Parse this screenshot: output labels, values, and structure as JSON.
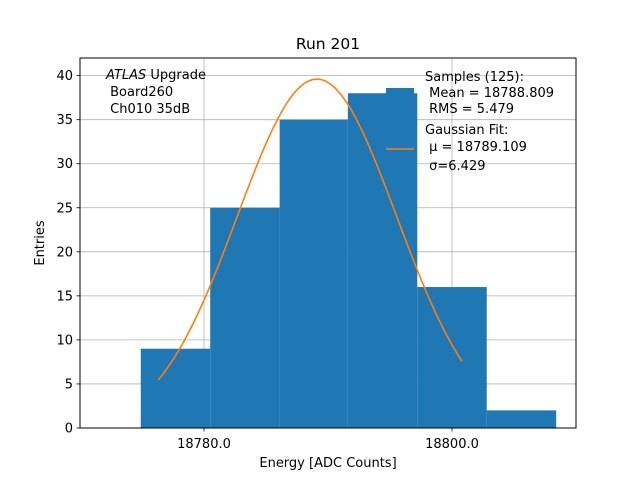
{
  "chart_data": {
    "type": "bar",
    "title": "Run 201",
    "xlabel": "Energy [ADC Counts]",
    "ylabel": "Entries",
    "xlim": [
      18770,
      18810
    ],
    "ylim": [
      0,
      42
    ],
    "grid": true,
    "x_ticks": [
      18780,
      18800
    ],
    "x_tick_labels": [
      "18780.0",
      "18800.0"
    ],
    "y_ticks": [
      0,
      5,
      10,
      15,
      20,
      25,
      30,
      35,
      40
    ],
    "y_tick_labels": [
      "0",
      "5",
      "10",
      "15",
      "20",
      "25",
      "30",
      "35",
      "40"
    ],
    "bins": [
      {
        "x0": 18774.9,
        "x1": 18780.5,
        "value": 9
      },
      {
        "x0": 18780.5,
        "x1": 18786.1,
        "value": 25
      },
      {
        "x0": 18786.1,
        "x1": 18791.6,
        "value": 35
      },
      {
        "x0": 18791.6,
        "x1": 18797.2,
        "value": 38
      },
      {
        "x0": 18797.2,
        "x1": 18802.8,
        "value": 16
      },
      {
        "x0": 18802.8,
        "x1": 18808.4,
        "value": 2
      }
    ],
    "histogram_color": "#1f77b4",
    "fit": {
      "name": "Gaussian Fit",
      "mu": 18789.109,
      "sigma": 6.429,
      "amplitude": 39.6,
      "x_start": 18776.3,
      "x_end": 18800.8,
      "color": "#ff7f0e"
    },
    "legend": {
      "position": "top-right",
      "entries": [
        {
          "kind": "patch",
          "lines": [
            "Samples (125):",
            " Mean = 18788.809",
            " RMS = 5.479"
          ]
        },
        {
          "kind": "line",
          "lines": [
            "Gaussian Fit:",
            " μ = 18789.109",
            " σ=6.429"
          ]
        }
      ]
    },
    "annotation": {
      "italic_part": "ATLAS",
      "rest_first_line": " Upgrade",
      "lines": [
        " Board260",
        " Ch010 35dB"
      ]
    }
  }
}
